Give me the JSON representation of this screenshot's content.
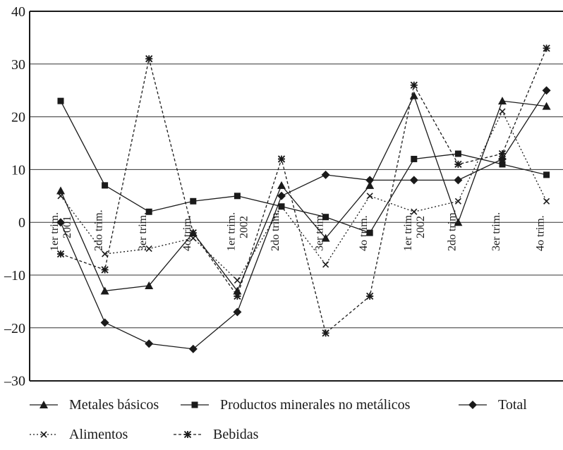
{
  "chart_data": {
    "type": "line",
    "title": "",
    "xlabel": "",
    "ylabel": "",
    "ylim": [
      -30,
      40
    ],
    "y_ticks": [
      {
        "value": 40,
        "label": "40"
      },
      {
        "value": 30,
        "label": "30"
      },
      {
        "value": 20,
        "label": "20"
      },
      {
        "value": 10,
        "label": "10"
      },
      {
        "value": 0,
        "label": "0"
      },
      {
        "value": -10,
        "label": "–10"
      },
      {
        "value": -20,
        "label": "–20"
      },
      {
        "value": -30,
        "label": "–30"
      }
    ],
    "categories": [
      {
        "q": "1er trim.",
        "year": "2001"
      },
      {
        "q": "2do trim.",
        "year": ""
      },
      {
        "q": "3er trim.",
        "year": ""
      },
      {
        "q": "4o trim.",
        "year": ""
      },
      {
        "q": "1er trim.",
        "year": "2002"
      },
      {
        "q": "2do trim.",
        "year": ""
      },
      {
        "q": "3er trim.",
        "year": ""
      },
      {
        "q": "4o trim.",
        "year": ""
      },
      {
        "q": "1er trim.",
        "year": "2002"
      },
      {
        "q": "2do trim.",
        "year": ""
      },
      {
        "q": "3er trim.",
        "year": ""
      },
      {
        "q": "4o trim.",
        "year": ""
      }
    ],
    "grid": true,
    "legend_position": "bottom",
    "series": [
      {
        "name": "Metales básicos",
        "marker": "triangle",
        "dash": "solid",
        "values": [
          6,
          -13,
          -12,
          -2,
          -13,
          7,
          -3,
          7,
          24,
          0,
          23,
          22
        ]
      },
      {
        "name": "Productos minerales no metálicos",
        "marker": "square",
        "dash": "solid",
        "values": [
          23,
          7,
          2,
          4,
          5,
          3,
          1,
          -2,
          12,
          13,
          11,
          9
        ]
      },
      {
        "name": "Total",
        "marker": "diamond",
        "dash": "solid",
        "values": [
          0,
          -19,
          -23,
          -24,
          -17,
          5,
          9,
          8,
          8,
          8,
          12,
          25
        ]
      },
      {
        "name": "Alimentos",
        "marker": "x",
        "dash": "dotted",
        "values": [
          5,
          -6,
          -5,
          -3,
          -11,
          3,
          -8,
          5,
          2,
          4,
          21,
          4
        ]
      },
      {
        "name": "Bebidas",
        "marker": "star",
        "dash": "dashed",
        "values": [
          -6,
          -9,
          31,
          -2,
          -14,
          12,
          -21,
          -14,
          26,
          11,
          13,
          33
        ]
      }
    ]
  }
}
